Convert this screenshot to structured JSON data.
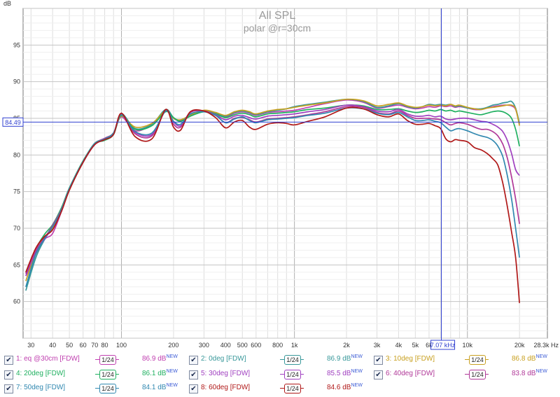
{
  "chart_data": {
    "type": "line",
    "title": "All SPL",
    "subtitle": "polar @r=30cm",
    "ylabel": "dB",
    "xunit": "Hz",
    "xscale": "log",
    "xlim": [
      27,
      29000
    ],
    "ylim": [
      55,
      100
    ],
    "grid": true,
    "x_ticks": [
      {
        "v": 30,
        "label": "30"
      },
      {
        "v": 40,
        "label": "40"
      },
      {
        "v": 50,
        "label": "50"
      },
      {
        "v": 60,
        "label": "60"
      },
      {
        "v": 70,
        "label": "70"
      },
      {
        "v": 80,
        "label": "80"
      },
      {
        "v": 100,
        "label": "100"
      },
      {
        "v": 200,
        "label": "200"
      },
      {
        "v": 300,
        "label": "300"
      },
      {
        "v": 400,
        "label": "400"
      },
      {
        "v": 500,
        "label": "500"
      },
      {
        "v": 600,
        "label": "600"
      },
      {
        "v": 800,
        "label": "800"
      },
      {
        "v": 1000,
        "label": "1k"
      },
      {
        "v": 2000,
        "label": "2k"
      },
      {
        "v": 3000,
        "label": "3k"
      },
      {
        "v": 4000,
        "label": "4k"
      },
      {
        "v": 5000,
        "label": "5k"
      },
      {
        "v": 6000,
        "label": "6k"
      },
      {
        "v": 10000,
        "label": "10k"
      },
      {
        "v": 20000,
        "label": "20k"
      },
      {
        "v": 28300,
        "label": "28.3k Hz"
      }
    ],
    "y_ticks": [
      60,
      65,
      70,
      75,
      80,
      85,
      90,
      95
    ],
    "cursor": {
      "x": 7070,
      "y": 84.49,
      "x_label": "7.07 kHz",
      "y_label": "84.49"
    },
    "x": [
      28,
      32,
      36,
      40,
      45,
      50,
      60,
      70,
      80,
      90,
      100,
      120,
      150,
      180,
      200,
      220,
      250,
      300,
      350,
      400,
      450,
      500,
      550,
      600,
      700,
      800,
      900,
      1000,
      1200,
      1500,
      2000,
      2500,
      3000,
      3500,
      4000,
      4500,
      5000,
      5500,
      6000,
      6500,
      7000,
      7500,
      8000,
      8500,
      9000,
      10000,
      11000,
      12000,
      13000,
      14000,
      15000,
      16000,
      17000,
      18000,
      19000,
      20000
    ],
    "series": [
      {
        "name": "1: eq @30cm [FDW]",
        "color": "#c040b0",
        "value": "86.9 dB",
        "values": [
          63.5,
          66.5,
          68.5,
          69.3,
          72.3,
          75.3,
          79.0,
          81.5,
          82.3,
          83.0,
          85.2,
          83.3,
          84.2,
          86.1,
          85.0,
          84.7,
          85.3,
          86.0,
          85.6,
          85.2,
          85.7,
          85.9,
          85.7,
          85.4,
          85.8,
          85.9,
          86.0,
          86.1,
          86.5,
          87.0,
          87.5,
          87.2,
          86.4,
          86.6,
          86.8,
          86.5,
          86.3,
          86.4,
          86.6,
          86.5,
          86.7,
          86.6,
          86.7,
          86.5,
          86.6,
          86.4,
          86.2,
          86.2,
          86.4,
          86.6,
          86.7,
          86.8,
          86.8,
          86.7,
          86.2,
          84.2
        ]
      },
      {
        "name": "2: 0deg [FDW]",
        "color": "#38989a",
        "value": "86.9 dB",
        "values": [
          61.5,
          66.0,
          68.5,
          70.2,
          72.6,
          75.4,
          79.1,
          81.6,
          82.1,
          82.9,
          85.6,
          83.6,
          84.2,
          86.2,
          85.1,
          84.6,
          85.5,
          86.0,
          85.7,
          85.3,
          85.8,
          86.0,
          85.8,
          85.5,
          85.9,
          86.1,
          86.3,
          86.6,
          86.9,
          87.2,
          87.6,
          87.3,
          86.5,
          86.7,
          87.0,
          86.6,
          86.4,
          86.6,
          86.9,
          86.8,
          86.9,
          86.8,
          86.9,
          86.6,
          86.7,
          86.4,
          86.3,
          86.3,
          86.5,
          86.8,
          86.9,
          87.1,
          87.2,
          87.3,
          86.4,
          84.3
        ]
      },
      {
        "name": "3: 10deg [FDW]",
        "color": "#c8a020",
        "value": "86.8 dB",
        "values": [
          62.8,
          66.8,
          68.8,
          70.0,
          72.4,
          75.3,
          79.0,
          81.5,
          82.2,
          83.0,
          85.3,
          83.8,
          84.3,
          86.0,
          85.0,
          84.8,
          85.4,
          86.1,
          85.8,
          85.4,
          85.9,
          86.1,
          85.9,
          85.6,
          86.0,
          86.2,
          86.3,
          86.5,
          86.8,
          87.1,
          87.6,
          87.4,
          86.7,
          86.9,
          87.1,
          86.7,
          86.5,
          86.6,
          86.8,
          86.7,
          86.8,
          86.7,
          86.9,
          86.7,
          86.8,
          86.5,
          86.3,
          86.2,
          86.4,
          86.5,
          86.6,
          86.7,
          86.8,
          86.8,
          86.3,
          84.0
        ]
      },
      {
        "name": "4: 20deg [FDW]",
        "color": "#20b060",
        "value": "86.1 dB",
        "values": [
          64.0,
          67.2,
          69.2,
          70.5,
          72.8,
          75.5,
          79.2,
          81.5,
          82.0,
          82.8,
          85.4,
          83.5,
          84.0,
          85.9,
          85.1,
          84.6,
          85.3,
          85.9,
          85.6,
          85.1,
          85.5,
          85.7,
          85.5,
          85.2,
          85.6,
          85.7,
          85.8,
          85.9,
          86.2,
          86.4,
          86.8,
          86.7,
          86.2,
          86.2,
          86.3,
          86.0,
          85.8,
          85.9,
          86.1,
          86.0,
          86.2,
          86.0,
          86.1,
          85.9,
          86.0,
          85.8,
          85.6,
          85.5,
          85.7,
          85.9,
          86.0,
          85.9,
          85.6,
          85.0,
          83.5,
          81.2
        ]
      },
      {
        "name": "5: 30deg [FDW]",
        "color": "#a040c0",
        "value": "85.5 dB",
        "values": [
          63.5,
          66.8,
          68.5,
          70.3,
          72.5,
          75.3,
          79.0,
          81.4,
          82.1,
          82.9,
          85.5,
          83.1,
          82.8,
          86.0,
          84.5,
          84.0,
          85.8,
          86.0,
          85.5,
          84.8,
          85.3,
          85.4,
          85.1,
          84.9,
          85.3,
          85.4,
          85.5,
          85.6,
          85.9,
          86.2,
          86.8,
          86.6,
          86.0,
          85.9,
          86.2,
          85.6,
          85.3,
          85.3,
          85.4,
          85.2,
          85.3,
          84.9,
          84.8,
          84.9,
          85.0,
          85.0,
          84.8,
          84.6,
          84.5,
          84.2,
          83.8,
          83.2,
          82.0,
          80.2,
          78.0,
          77.2
        ]
      },
      {
        "name": "6: 40deg [FDW]",
        "color": "#b03898",
        "value": "83.8 dB",
        "values": [
          63.8,
          67.0,
          68.7,
          70.4,
          72.6,
          75.4,
          79.1,
          81.5,
          82.2,
          83.0,
          85.6,
          82.9,
          82.6,
          86.1,
          84.2,
          83.8,
          85.8,
          86.0,
          85.4,
          84.4,
          85.0,
          85.1,
          84.8,
          84.5,
          84.9,
          85.0,
          85.1,
          85.2,
          85.5,
          85.9,
          86.6,
          86.5,
          85.8,
          85.6,
          86.0,
          85.4,
          85.0,
          85.0,
          85.0,
          84.9,
          84.8,
          84.4,
          84.1,
          84.3,
          84.4,
          84.2,
          83.8,
          83.5,
          83.5,
          83.2,
          82.6,
          81.5,
          79.6,
          77.0,
          74.0,
          70.6
        ]
      },
      {
        "name": "7: 50deg [FDW]",
        "color": "#3088b0",
        "value": "84.1 dB",
        "values": [
          62.0,
          66.5,
          68.6,
          70.2,
          72.5,
          75.4,
          79.1,
          81.5,
          82.2,
          83.0,
          85.5,
          83.2,
          83.0,
          86.0,
          84.6,
          84.2,
          85.6,
          85.9,
          85.4,
          84.4,
          84.9,
          85.2,
          84.7,
          84.4,
          84.8,
          84.9,
          85.0,
          85.1,
          85.4,
          85.7,
          86.4,
          86.3,
          85.7,
          85.5,
          85.8,
          85.2,
          84.7,
          84.7,
          84.8,
          84.6,
          84.4,
          83.8,
          83.3,
          83.5,
          83.6,
          83.3,
          82.9,
          82.6,
          82.4,
          82.0,
          81.2,
          79.8,
          77.2,
          74.0,
          70.0,
          66.0
        ]
      },
      {
        "name": "8: 60deg [FDW]",
        "color": "#b01818",
        "value": "84.6 dB",
        "values": [
          64.0,
          67.3,
          68.9,
          69.8,
          72.3,
          75.2,
          79.0,
          81.4,
          82.1,
          82.8,
          85.7,
          82.5,
          82.2,
          86.2,
          83.8,
          83.4,
          85.9,
          86.0,
          85.1,
          83.7,
          84.5,
          84.7,
          83.8,
          83.5,
          84.2,
          84.4,
          84.3,
          84.1,
          84.6,
          85.2,
          86.4,
          86.3,
          85.5,
          85.2,
          85.6,
          84.7,
          84.2,
          84.2,
          84.3,
          84.0,
          83.6,
          82.2,
          81.8,
          82.1,
          82.0,
          81.8,
          81.0,
          80.7,
          80.2,
          79.5,
          78.6,
          76.2,
          73.0,
          69.5,
          66.0,
          59.8
        ]
      }
    ]
  },
  "legend": {
    "smooth_label": "1/24",
    "new_tag": "NEW",
    "checked_glyph": "✔"
  }
}
